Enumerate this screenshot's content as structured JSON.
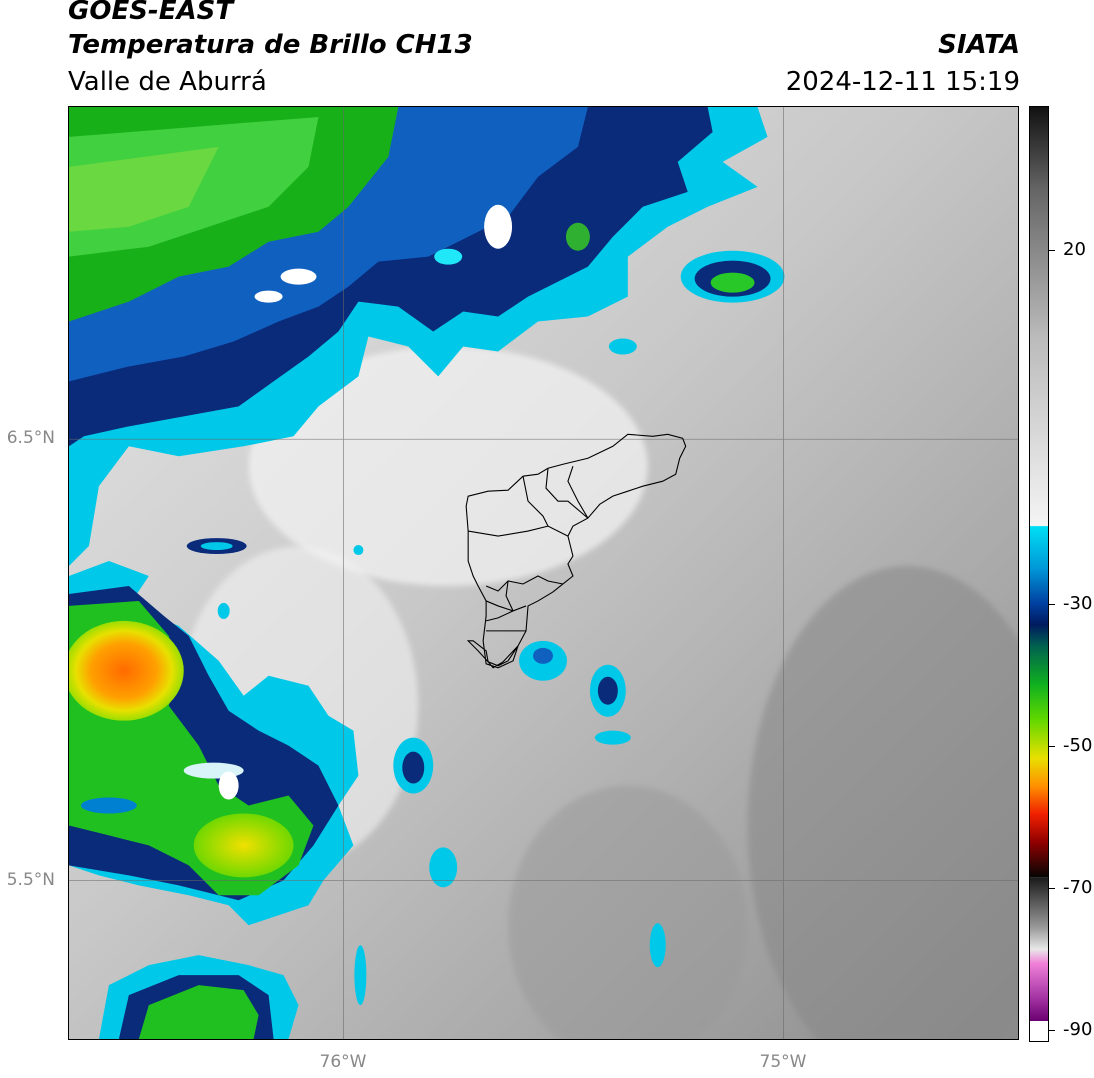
{
  "header": {
    "title_line1": "GOES-EAST",
    "title_line2": "Temperatura de Brillo CH13",
    "subtitle": "Valle de Aburrá",
    "organization": "SIATA",
    "datetime": "2024-12-11 15:19"
  },
  "map": {
    "lat_labels": [
      "6.5°N",
      "5.5°N"
    ],
    "lon_labels": [
      "76°W",
      "75°W"
    ],
    "gridlines": true,
    "region_outline": "Valle de Aburrá municipalities"
  },
  "colorbar": {
    "ticks": [
      "20",
      "-30",
      "-50",
      "-70",
      "-90"
    ],
    "colors": {
      "gray_dark": "#1a1a1a",
      "gray_light": "#f0f0f0",
      "cyan": "#00d8ef",
      "blue": "#0044aa",
      "navy": "#001a66",
      "green": "#22c822",
      "yellow": "#f0e600",
      "orange": "#ff8a00",
      "red": "#e00000",
      "black": "#000000",
      "pink": "#e070d0",
      "purple": "#7a1080"
    }
  }
}
